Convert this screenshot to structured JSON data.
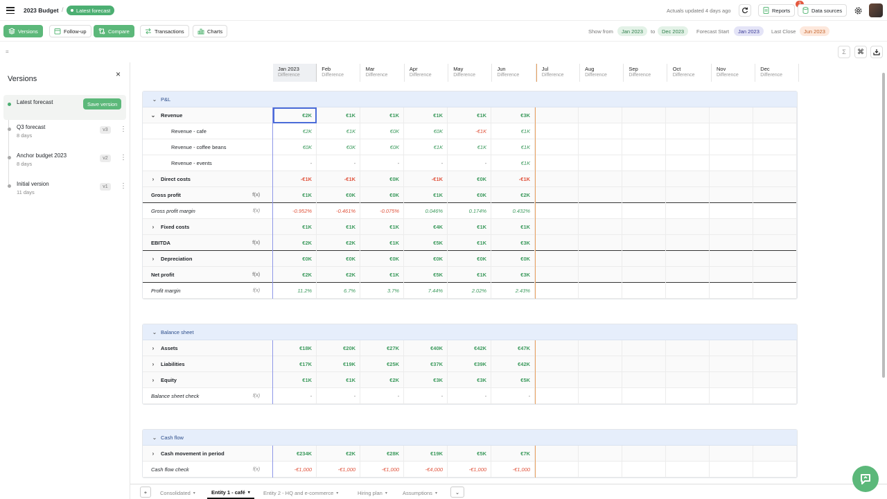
{
  "app": {
    "title": "2023 Budget",
    "version_pill": "Latest forecast",
    "actuals_updated": "Actuals updated 4 days ago",
    "reports_label": "Reports",
    "reports_badge": "3",
    "data_sources_label": "Data sources"
  },
  "toolbar": {
    "versions": "Versions",
    "follow_up": "Follow-up",
    "compare": "Compare",
    "transactions": "Transactions",
    "charts": "Charts",
    "show_from_label": "Show from",
    "show_from": "Jan 2023",
    "to_label": "to",
    "show_to": "Dec 2023",
    "forecast_start_label": "Forecast Start",
    "forecast_start": "Jan 2023",
    "last_close_label": "Last Close",
    "last_close": "Jun 2023"
  },
  "formula_bar": "=",
  "sidebar": {
    "title": "Versions",
    "save_label": "Save version",
    "versions": [
      {
        "name": "Latest forecast",
        "age": "",
        "tag": ""
      },
      {
        "name": "Q3 forecast",
        "age": "8 days",
        "tag": "v3"
      },
      {
        "name": "Anchor budget 2023",
        "age": "8 days",
        "tag": "v2"
      },
      {
        "name": "Initial version",
        "age": "11 days",
        "tag": "v1"
      }
    ]
  },
  "months": [
    {
      "m": "Jan 2023",
      "d": "Difference"
    },
    {
      "m": "Feb",
      "d": "Difference"
    },
    {
      "m": "Mar",
      "d": "Difference"
    },
    {
      "m": "Apr",
      "d": "Difference"
    },
    {
      "m": "May",
      "d": "Difference"
    },
    {
      "m": "Jun",
      "d": "Difference"
    },
    {
      "m": "Jul",
      "d": "Difference"
    },
    {
      "m": "Aug",
      "d": "Difference"
    },
    {
      "m": "Sep",
      "d": "Difference"
    },
    {
      "m": "Oct",
      "d": "Difference"
    },
    {
      "m": "Nov",
      "d": "Difference"
    },
    {
      "m": "Dec",
      "d": "Difference"
    }
  ],
  "sections": [
    {
      "title": "P&L",
      "rows": [
        {
          "label": "Revenue",
          "chev": "v",
          "indent": 1,
          "style": "bold",
          "values": [
            "€2K",
            "€1K",
            "€1K",
            "€1K",
            "€1K",
            "€3K"
          ]
        },
        {
          "label": "Revenue - cafe",
          "indent": 3,
          "style": "",
          "values": [
            "€2K",
            "€1K",
            "€0K",
            "€0K",
            "-€1K",
            "€1K"
          ]
        },
        {
          "label": "Revenue - coffee beans",
          "indent": 3,
          "style": "",
          "values": [
            "€0K",
            "€0K",
            "€0K",
            "€1K",
            "€1K",
            "€1K"
          ]
        },
        {
          "label": "Revenue - events",
          "indent": 3,
          "style": "",
          "values": [
            "-",
            "-",
            "-",
            "-",
            "-",
            "€1K"
          ]
        },
        {
          "label": "Direct costs",
          "chev": ">",
          "indent": 1,
          "style": "bold",
          "values": [
            "-€1K",
            "-€1K",
            "€0K",
            "-€1K",
            "€0K",
            "-€1K"
          ]
        },
        {
          "label": "Gross profit",
          "fx": "f(x)",
          "indent": 0,
          "style": "bold strong",
          "values": [
            "€1K",
            "€0K",
            "€0K",
            "€1K",
            "€0K",
            "€2K"
          ]
        },
        {
          "label": "Gross profit margin",
          "fx": "f(x)",
          "indent": 0,
          "style": "ital",
          "values": [
            "-0.952%",
            "-0.461%",
            "-0.075%",
            "0.046%",
            "0.174%",
            "0.432%"
          ]
        },
        {
          "label": "Fixed costs",
          "chev": ">",
          "indent": 1,
          "style": "bold",
          "values": [
            "€1K",
            "€1K",
            "€1K",
            "€4K",
            "€1K",
            "€1K"
          ]
        },
        {
          "label": "EBITDA",
          "fx": "f(x)",
          "indent": 0,
          "style": "bold strong",
          "values": [
            "€2K",
            "€2K",
            "€1K",
            "€5K",
            "€1K",
            "€3K"
          ]
        },
        {
          "label": "Depreciation",
          "chev": ">",
          "indent": 1,
          "style": "bold",
          "values": [
            "€0K",
            "€0K",
            "€0K",
            "€0K",
            "€0K",
            "€0K"
          ]
        },
        {
          "label": "Net profit",
          "fx": "f(x)",
          "indent": 0,
          "style": "bold strong",
          "values": [
            "€2K",
            "€2K",
            "€1K",
            "€5K",
            "€1K",
            "€3K"
          ]
        },
        {
          "label": "Profit margin",
          "fx": "f(x)",
          "indent": 0,
          "style": "ital",
          "values": [
            "11.2%",
            "6.7%",
            "3.7%",
            "7.44%",
            "2.02%",
            "2.43%"
          ]
        }
      ]
    },
    {
      "title": "Balance sheet",
      "rows": [
        {
          "label": "Assets",
          "chev": ">",
          "indent": 1,
          "style": "bold",
          "values": [
            "€18K",
            "€20K",
            "€27K",
            "€40K",
            "€42K",
            "€47K"
          ]
        },
        {
          "label": "Liabilities",
          "chev": ">",
          "indent": 1,
          "style": "bold",
          "values": [
            "€17K",
            "€19K",
            "€25K",
            "€37K",
            "€39K",
            "€42K"
          ]
        },
        {
          "label": "Equity",
          "chev": ">",
          "indent": 1,
          "style": "bold",
          "values": [
            "€1K",
            "€1K",
            "€2K",
            "€3K",
            "€3K",
            "€5K"
          ]
        },
        {
          "label": "Balance sheet check",
          "fx": "f(x)",
          "indent": 0,
          "style": "ital",
          "values": [
            "-",
            "-",
            "-",
            "-",
            "-",
            "-"
          ]
        }
      ]
    },
    {
      "title": "Cash flow",
      "rows": [
        {
          "label": "Cash movement in period",
          "chev": ">",
          "indent": 1,
          "style": "bold",
          "values": [
            "€234K",
            "€2K",
            "€28K",
            "€19K",
            "€5K",
            "€7K"
          ]
        },
        {
          "label": "Cash flow check",
          "fx": "f(x)",
          "indent": 0,
          "style": "ital",
          "values": [
            "-€1,000",
            "-€1,000",
            "-€1,000",
            "-€4,000",
            "-€1,000",
            "-€1,000"
          ]
        }
      ]
    }
  ],
  "tabs": [
    {
      "label": "Consolidated"
    },
    {
      "label": "Entity 1 - café"
    },
    {
      "label": "Entity 2 - HQ and e-commerce"
    },
    {
      "label": "Hiring plan"
    },
    {
      "label": "Assumptions"
    }
  ],
  "colors": {
    "accent": "#5cb87a",
    "positive": "#3c9a5d",
    "negative": "#e0523b",
    "section": "#e6eefb"
  }
}
